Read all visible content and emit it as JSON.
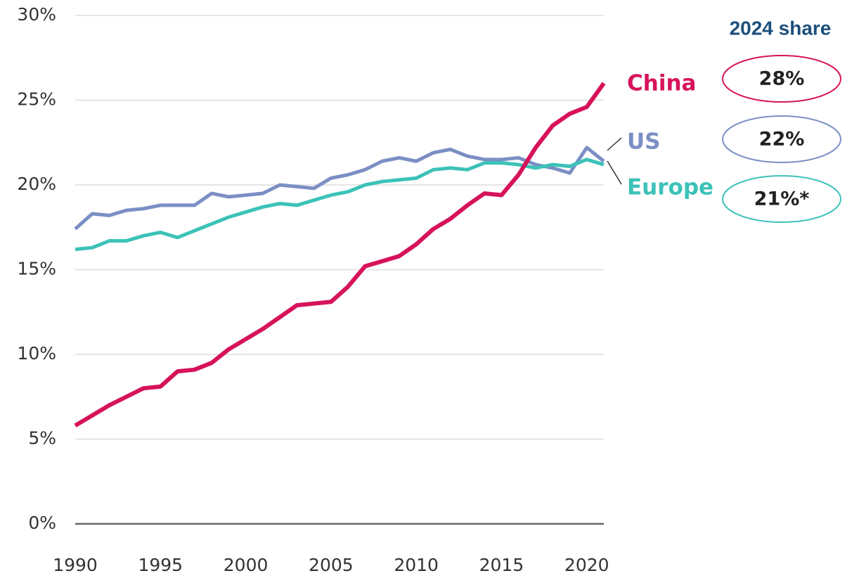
{
  "chart_data": {
    "type": "line",
    "x": [
      1990,
      1991,
      1992,
      1993,
      1994,
      1995,
      1996,
      1997,
      1998,
      1999,
      2000,
      2001,
      2002,
      2003,
      2004,
      2005,
      2006,
      2007,
      2008,
      2009,
      2010,
      2011,
      2012,
      2013,
      2014,
      2015,
      2016,
      2017,
      2018,
      2019,
      2020,
      2021
    ],
    "series": [
      {
        "name": "China",
        "color": "#d6135a",
        "values": [
          5.8,
          6.4,
          7.0,
          7.5,
          8.0,
          8.1,
          9.0,
          9.1,
          9.5,
          10.3,
          10.9,
          11.5,
          12.2,
          12.9,
          13.0,
          13.1,
          14.0,
          15.2,
          15.5,
          15.8,
          16.5,
          17.4,
          18.0,
          18.8,
          19.5,
          19.4,
          20.6,
          22.2,
          23.5,
          24.2,
          24.6,
          26.0
        ]
      },
      {
        "name": "US",
        "color": "#7b8fc4",
        "values": [
          17.4,
          18.3,
          18.2,
          18.5,
          18.6,
          18.8,
          18.8,
          18.8,
          19.5,
          19.3,
          19.4,
          19.5,
          20.0,
          19.9,
          19.8,
          20.4,
          20.6,
          20.9,
          21.4,
          21.6,
          21.4,
          21.9,
          22.1,
          21.7,
          21.5,
          21.5,
          21.6,
          21.2,
          21.0,
          20.7,
          22.2,
          21.4
        ]
      },
      {
        "name": "Europe",
        "color": "#3cc2b8",
        "values": [
          16.2,
          16.3,
          16.7,
          16.7,
          17.0,
          17.2,
          16.9,
          17.3,
          17.7,
          18.1,
          18.4,
          18.7,
          18.9,
          18.8,
          19.1,
          19.4,
          19.6,
          20.0,
          20.2,
          20.3,
          20.4,
          20.9,
          21.0,
          20.9,
          21.3,
          21.3,
          21.2,
          21.0,
          21.2,
          21.1,
          21.5,
          21.2
        ]
      }
    ],
    "xlim": [
      1990,
      2021
    ],
    "xticks": [
      1990,
      1995,
      2000,
      2005,
      2010,
      2015,
      2020
    ],
    "ylim": [
      0,
      30
    ],
    "yticks": [
      {
        "value": 0,
        "label": "0%"
      },
      {
        "value": 5,
        "label": "5%"
      },
      {
        "value": 10,
        "label": "10%"
      },
      {
        "value": 15,
        "label": "15%"
      },
      {
        "value": 20,
        "label": "20%"
      },
      {
        "value": 25,
        "label": "25%"
      },
      {
        "value": 30,
        "label": "30%"
      }
    ],
    "grid": true,
    "annotations": {
      "title": "2024 share",
      "labels": [
        "28%",
        "22%",
        "21%*"
      ]
    }
  }
}
